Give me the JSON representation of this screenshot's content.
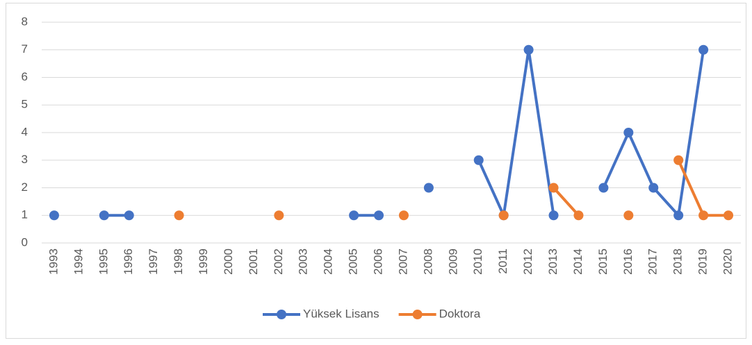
{
  "chart_data": {
    "type": "line",
    "categories": [
      "1993",
      "1994",
      "1995",
      "1996",
      "1997",
      "1998",
      "1999",
      "2000",
      "2001",
      "2002",
      "2003",
      "2004",
      "2005",
      "2006",
      "2007",
      "2008",
      "2009",
      "2010",
      "2011",
      "2012",
      "2013",
      "2014",
      "2015",
      "2016",
      "2017",
      "2018",
      "2019",
      "2020"
    ],
    "series": [
      {
        "name": "Yüksek Lisans",
        "color": "#4472c4",
        "values": [
          1,
          null,
          1,
          1,
          null,
          null,
          null,
          null,
          null,
          null,
          null,
          null,
          1,
          1,
          null,
          2,
          null,
          3,
          1,
          7,
          1,
          null,
          2,
          4,
          2,
          1,
          7,
          null
        ]
      },
      {
        "name": "Doktora",
        "color": "#ed7d31",
        "values": [
          null,
          null,
          null,
          null,
          null,
          1,
          null,
          null,
          null,
          1,
          null,
          null,
          null,
          null,
          1,
          null,
          null,
          null,
          1,
          null,
          2,
          1,
          null,
          1,
          null,
          3,
          1,
          1
        ]
      }
    ],
    "ylim": [
      0,
      8
    ],
    "yticks": [
      0,
      1,
      2,
      3,
      4,
      5,
      6,
      7,
      8
    ],
    "grid": true,
    "legend": "bottom"
  }
}
